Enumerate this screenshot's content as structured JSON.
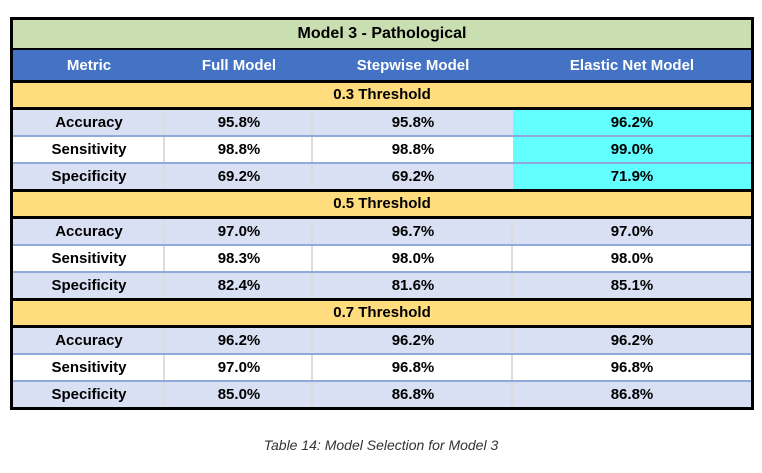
{
  "table": {
    "title": "Model 3 - Pathological",
    "columns": [
      "Metric",
      "Full Model",
      "Stepwise Model",
      "Elastic Net Model"
    ],
    "sections": [
      {
        "label": "0.3 Threshold",
        "rows": [
          {
            "metric": "Accuracy",
            "values": [
              "95.8%",
              "95.8%",
              "96.2%"
            ],
            "highlight_col": "Elastic Net Model"
          },
          {
            "metric": "Sensitivity",
            "values": [
              "98.8%",
              "98.8%",
              "99.0%"
            ],
            "highlight_col": "Elastic Net Model"
          },
          {
            "metric": "Specificity",
            "values": [
              "69.2%",
              "69.2%",
              "71.9%"
            ],
            "highlight_col": "Elastic Net Model"
          }
        ]
      },
      {
        "label": "0.5 Threshold",
        "rows": [
          {
            "metric": "Accuracy",
            "values": [
              "97.0%",
              "96.7%",
              "97.0%"
            ]
          },
          {
            "metric": "Sensitivity",
            "values": [
              "98.3%",
              "98.0%",
              "98.0%"
            ]
          },
          {
            "metric": "Specificity",
            "values": [
              "82.4%",
              "81.6%",
              "85.1%"
            ]
          }
        ]
      },
      {
        "label": "0.7 Threshold",
        "rows": [
          {
            "metric": "Accuracy",
            "values": [
              "96.2%",
              "96.2%",
              "96.2%"
            ]
          },
          {
            "metric": "Sensitivity",
            "values": [
              "97.0%",
              "96.8%",
              "96.8%"
            ]
          },
          {
            "metric": "Specificity",
            "values": [
              "85.0%",
              "86.8%",
              "86.8%"
            ]
          }
        ]
      }
    ]
  },
  "caption": "Table 14: Model Selection for Model 3",
  "colors": {
    "title_bg": "#C9DFB2",
    "header_bg": "#4472C4",
    "header_text": "#FFFFFF",
    "band_bg": "#FFDD7E",
    "row_alt_bg": "#DAE0F3",
    "row_bg": "#FFFFFF",
    "highlight_bg": "#63FFFF",
    "row_divider": "#8EA9DB",
    "border": "#000000"
  }
}
